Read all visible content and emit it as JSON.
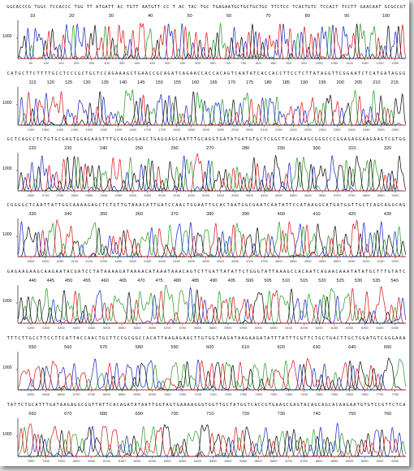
{
  "chart_data": {
    "type": "line",
    "chart_kind": "DNA sequencing chromatogram (Sanger trace)",
    "base_colors": {
      "A": "#2e9e2e",
      "C": "#1d2fc4",
      "G": "#111111",
      "T": "#d21f1f"
    },
    "y_tick_label": "1000",
    "panels": [
      {
        "sequence": "GGCACCCG TGGC TCCACCC TGG TT ATGATT AC TGTT AATGTT CC T AC TAC TGC TGAGAATGCTGCTGCTGC TTCTCC TCACTGTC TCCACT TCCTT GAACAAT GCGCCGT",
        "position_labels": [
          "10",
          "20",
          "30",
          "40",
          "50",
          "60",
          "70",
          "80",
          "90",
          "100"
        ],
        "scan_ticks": [
          "50",
          "100",
          "150",
          "200",
          "250",
          "300",
          "350",
          "400",
          "450",
          "500",
          "550",
          "600",
          "650",
          "700",
          "750",
          "800",
          "850",
          "900",
          "950",
          "1000",
          "1050",
          "1100",
          "1150",
          "1200",
          "1250"
        ]
      },
      {
        "sequence": "CATGCTTCTTTTGCCTCCCGCTGCTCCAGAAAGCTGAACCGCAGATCAGAACCACCACAGTCAATATCACCACCTTCCTCTTATAGGTTCGGAATCTCATGATAGGG",
        "position_labels": [
          "115",
          "120",
          "125",
          "130",
          "135",
          "140",
          "145",
          "150",
          "155",
          "160",
          "165",
          "170",
          "175",
          "180",
          "185",
          "190",
          "195",
          "200",
          "205",
          "210",
          "215"
        ],
        "scan_ticks": [
          "1300",
          "1350",
          "1400",
          "1450",
          "1500",
          "1550",
          "1600",
          "1650",
          "1700",
          "1750",
          "1800",
          "1850",
          "1900",
          "1950",
          "2000",
          "2050",
          "2100",
          "2150",
          "2200",
          "2250",
          "2300",
          "2350",
          "2400",
          "2450",
          "2500",
          "2550"
        ]
      },
      {
        "sequence": "GCTCAGCCTCTGTGCGAGTGGAGAAGTTTGCAGGCGAGCTGAGGAGCAATTTGCAGGTGATATGATGTGCTCGGCTCAAGAAGCGGGCCCGGAGAGGAAGAAGTCGTGG",
        "position_labels": [
          "220",
          "230",
          "240",
          "250",
          "260",
          "270",
          "280",
          "290",
          "300",
          "310",
          "320"
        ],
        "scan_ticks": [
          "2650",
          "2700",
          "2750",
          "2800",
          "2850",
          "2900",
          "2950",
          "3000",
          "3050",
          "3100",
          "3150",
          "3200",
          "3250",
          "3300",
          "3350",
          "3400",
          "3450",
          "3500",
          "3550",
          "3600",
          "3650",
          "3700",
          "3750",
          "3800",
          "3850",
          "3900"
        ]
      },
      {
        "sequence": "CGGGGCTCAATTATTGGCAAAAGAGCTCTGTTGTAAACATTGATCCAACTGGAATTGCACTAATGGCGAATCAATATTCCATAAGGCATGATGGTTGCTCAGCAGGCAG",
        "position_labels": [
          "330",
          "340",
          "350",
          "360",
          "370",
          "380",
          "390",
          "400",
          "410",
          "420",
          "430"
        ],
        "scan_ticks": [
          "3950",
          "4000",
          "4050",
          "4100",
          "4150",
          "4200",
          "4250",
          "4300",
          "4350",
          "4400",
          "4450",
          "4500",
          "4550",
          "4600",
          "4650",
          "4700",
          "4750",
          "4800",
          "4850",
          "4900",
          "4950",
          "5000",
          "5050",
          "5100",
          "5150",
          "5200"
        ]
      },
      {
        "sequence": "GAGAAGAAGCAAGAATACGATCCTATAAAAGATAAAACATAAATAAACAGTCTTGATTATATTCTGGGTATTAAAGCCACAATCAGAACAAATATATGCTTTGTATC",
        "position_labels": [
          "440",
          "445",
          "450",
          "455",
          "460",
          "465",
          "470",
          "475",
          "480",
          "485",
          "490",
          "495",
          "500",
          "505",
          "510",
          "515",
          "520",
          "525",
          "530",
          "535",
          "540"
        ],
        "scan_ticks": [
          "5250",
          "5300",
          "5350",
          "5400",
          "5450",
          "5500",
          "5550",
          "5600",
          "5650",
          "5700",
          "5750",
          "5800",
          "5850",
          "5900",
          "5950",
          "6000",
          "6050",
          "6100",
          "6150",
          "6200",
          "6250",
          "6300",
          "6350",
          "6400",
          "6450"
        ]
      },
      {
        "sequence": "TTTCTTGCCTTCCTTCATTACCAACTGCTTCCGCGGCCACATTAAGAGAACTTGTGGTAAGATAAGAAGATATTTATTTCGTTCTGCTGACTTGCTGGATGTCGGGAAA",
        "position_labels": [
          "550",
          "560",
          "570",
          "580",
          "590",
          "600",
          "610",
          "620",
          "630",
          "640",
          "650"
        ],
        "scan_ticks": [
          "6550",
          "6600",
          "6650",
          "6700",
          "6750",
          "6800",
          "6850",
          "6900",
          "6950",
          "7000",
          "7050",
          "7100",
          "7150",
          "7200",
          "7250",
          "7300",
          "7350",
          "7400",
          "7450",
          "7500",
          "7550",
          "7600",
          "7650",
          "7700",
          "7750"
        ]
      },
      {
        "sequence": "TATTCTGCATTTGATAAGAGGCGGTTATTCACAGATATAATTGGTAGTGAAAAGGGTGGTTGCTATGGTCACCGTGAAGCGAGTACAGCAGCACAAGAATGTGTCCGTTCTCA",
        "position_labels": [
          "660",
          "670",
          "680",
          "690",
          "700",
          "710",
          "720",
          "730",
          "740",
          "750",
          "760"
        ],
        "scan_ticks": [
          "7850",
          "7900",
          "7950",
          "8000",
          "8050",
          "8100",
          "8150",
          "8200",
          "8250",
          "8300",
          "8350",
          "8400",
          "8450",
          "8500",
          "8550",
          "8600",
          "8650",
          "8700",
          "8750",
          "8800",
          "8850",
          "8900",
          "8950",
          "9000",
          "9050"
        ]
      }
    ]
  }
}
